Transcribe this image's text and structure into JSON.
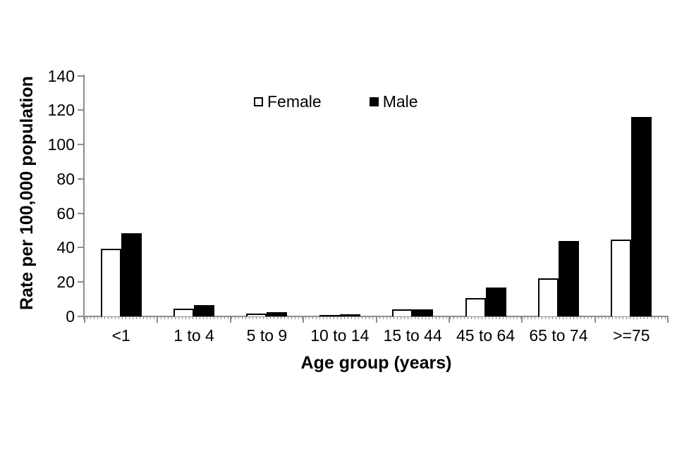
{
  "chart_data": {
    "type": "bar",
    "title": "",
    "xlabel": "Age group (years)",
    "ylabel": "Rate per 100,000 population",
    "categories": [
      "<1",
      "1 to 4",
      "5 to 9",
      "10 to 14",
      "15 to 44",
      "45 to 64",
      "65 to 74",
      ">=75"
    ],
    "series": [
      {
        "name": "Female",
        "values": [
          39.5,
          4.5,
          1.8,
          0.9,
          4.3,
          10.5,
          22,
          44.5
        ],
        "fill": "#ffffff",
        "border": "#000000"
      },
      {
        "name": "Male",
        "values": [
          48.5,
          6.5,
          2.5,
          1.3,
          4.0,
          17,
          44,
          116
        ],
        "fill": "#000000",
        "border": "#000000"
      }
    ],
    "ylim": [
      0,
      140
    ],
    "yticks": [
      0,
      20,
      40,
      60,
      80,
      100,
      120,
      140
    ],
    "grid": false,
    "legend_position": "top-center",
    "axis_color": "#8c8c8c",
    "text_color": "#000000"
  }
}
